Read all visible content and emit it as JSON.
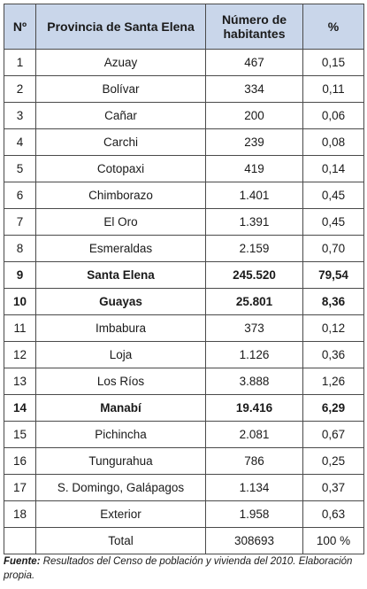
{
  "table": {
    "headers": [
      "Nº",
      "Provincia de Santa Elena",
      "Número de habitantes",
      "%"
    ],
    "rows": [
      {
        "n": "1",
        "provincia": "Azuay",
        "habitantes": "467",
        "pct": "0,15",
        "bold": false
      },
      {
        "n": "2",
        "provincia": "Bolívar",
        "habitantes": "334",
        "pct": "0,11",
        "bold": false
      },
      {
        "n": "3",
        "provincia": "Cañar",
        "habitantes": "200",
        "pct": "0,06",
        "bold": false
      },
      {
        "n": "4",
        "provincia": "Carchi",
        "habitantes": "239",
        "pct": "0,08",
        "bold": false
      },
      {
        "n": "5",
        "provincia": "Cotopaxi",
        "habitantes": "419",
        "pct": "0,14",
        "bold": false
      },
      {
        "n": "6",
        "provincia": "Chimborazo",
        "habitantes": "1.401",
        "pct": "0,45",
        "bold": false
      },
      {
        "n": "7",
        "provincia": "El Oro",
        "habitantes": "1.391",
        "pct": "0,45",
        "bold": false
      },
      {
        "n": "8",
        "provincia": "Esmeraldas",
        "habitantes": "2.159",
        "pct": "0,70",
        "bold": false
      },
      {
        "n": "9",
        "provincia": "Santa Elena",
        "habitantes": "245.520",
        "pct": "79,54",
        "bold": true
      },
      {
        "n": "10",
        "provincia": "Guayas",
        "habitantes": "25.801",
        "pct": "8,36",
        "bold": true
      },
      {
        "n": "11",
        "provincia": "Imbabura",
        "habitantes": "373",
        "pct": "0,12",
        "bold": false
      },
      {
        "n": "12",
        "provincia": "Loja",
        "habitantes": "1.126",
        "pct": "0,36",
        "bold": false
      },
      {
        "n": "13",
        "provincia": "Los Ríos",
        "habitantes": "3.888",
        "pct": "1,26",
        "bold": false
      },
      {
        "n": "14",
        "provincia": "Manabí",
        "habitantes": "19.416",
        "pct": "6,29",
        "bold": true
      },
      {
        "n": "15",
        "provincia": "Pichincha",
        "habitantes": "2.081",
        "pct": "0,67",
        "bold": false
      },
      {
        "n": "16",
        "provincia": "Tungurahua",
        "habitantes": "786",
        "pct": "0,25",
        "bold": false
      },
      {
        "n": "17",
        "provincia": "S. Domingo, Galápagos",
        "habitantes": "1.134",
        "pct": "0,37",
        "bold": false
      },
      {
        "n": "18",
        "provincia": "Exterior",
        "habitantes": "1.958",
        "pct": "0,63",
        "bold": false
      }
    ],
    "total": {
      "label": "Total",
      "habitantes": "308693",
      "pct": "100 %"
    }
  },
  "note": {
    "label": "Fuente:",
    "text": " Resultados del Censo de población y vivienda  del 2010. Elaboración propia."
  },
  "colors": {
    "header_bg": "#c9d6ea",
    "border": "#4a4a4a"
  }
}
